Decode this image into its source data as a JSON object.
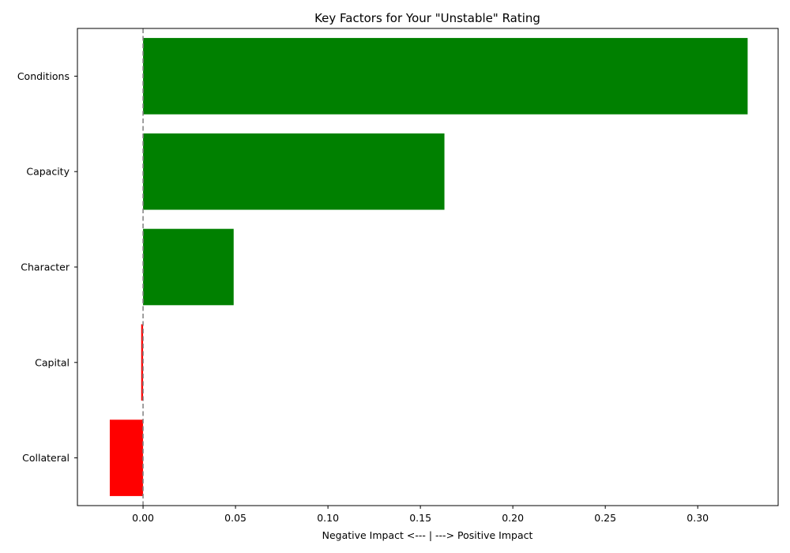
{
  "chart_data": {
    "type": "bar",
    "orientation": "horizontal",
    "title": "Key Factors for Your \"Unstable\" Rating",
    "xlabel": "Negative Impact <--- | ---> Positive Impact",
    "ylabel": "",
    "categories": [
      "Collateral",
      "Capital",
      "Character",
      "Capacity",
      "Conditions"
    ],
    "values": [
      -0.018,
      -0.001,
      0.049,
      0.163,
      0.327
    ],
    "bar_colors": [
      "#ff0000",
      "#ff0000",
      "#008000",
      "#008000",
      "#008000"
    ],
    "xlim": [
      -0.0355,
      0.3435
    ],
    "xticks": [
      0.0,
      0.05,
      0.1,
      0.15,
      0.2,
      0.25,
      0.3
    ],
    "xtick_labels": [
      "0.00",
      "0.05",
      "0.10",
      "0.15",
      "0.20",
      "0.25",
      "0.30"
    ],
    "zero_line": {
      "value": 0,
      "style": "dashed",
      "color": "#808080"
    },
    "grid": false,
    "legend": "none"
  }
}
